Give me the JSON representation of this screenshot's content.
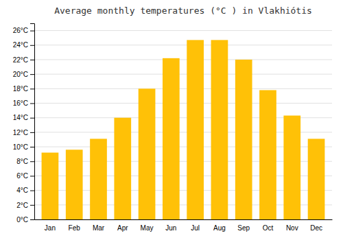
{
  "chart_data": {
    "type": "bar",
    "title": "Average monthly temperatures (°C ) in Vlakhiótis",
    "categories": [
      "Jan",
      "Feb",
      "Mar",
      "Apr",
      "May",
      "Jun",
      "Jul",
      "Aug",
      "Sep",
      "Oct",
      "Nov",
      "Dec"
    ],
    "values": [
      9.2,
      9.6,
      11.1,
      14.0,
      18.0,
      22.2,
      24.7,
      24.7,
      22.0,
      17.8,
      14.3,
      11.1
    ],
    "color": "#FFC107",
    "ylim": [
      0,
      27
    ],
    "yticks": [
      {
        "value": 0,
        "label": "0°C"
      },
      {
        "value": 2,
        "label": "2°C"
      },
      {
        "value": 4,
        "label": "4°C"
      },
      {
        "value": 6,
        "label": "6°C"
      },
      {
        "value": 8,
        "label": "8°C"
      },
      {
        "value": 10,
        "label": "10°C"
      },
      {
        "value": 12,
        "label": "12°C"
      },
      {
        "value": 14,
        "label": "14°C"
      },
      {
        "value": 16,
        "label": "16°C"
      },
      {
        "value": 18,
        "label": "18°C"
      },
      {
        "value": 20,
        "label": "20°C"
      },
      {
        "value": 22,
        "label": "22°C"
      },
      {
        "value": 24,
        "label": "24°C"
      },
      {
        "value": 26,
        "label": "26°C"
      }
    ],
    "grid": true
  }
}
